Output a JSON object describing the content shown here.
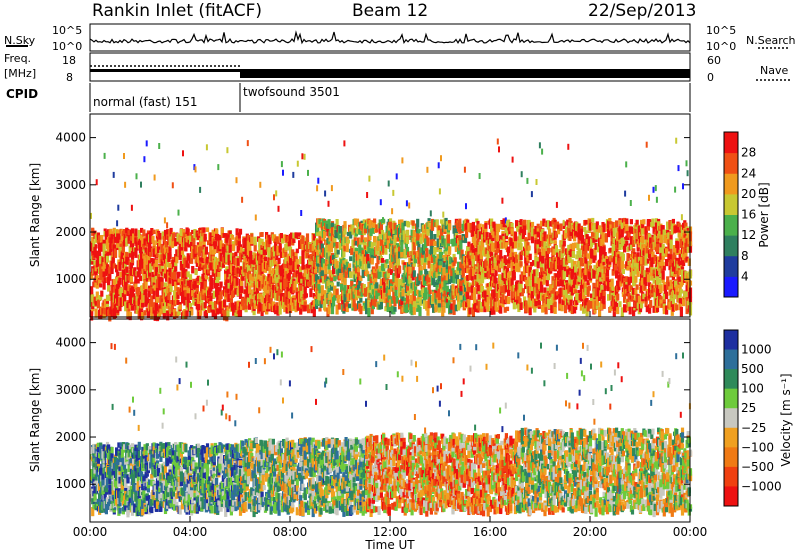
{
  "header": {
    "radar": "Rankin Inlet (fitACF)",
    "beam": "Beam 12",
    "date": "22/Sep/2013"
  },
  "nsky_panel": {
    "left_label": "N.Sky",
    "left_ticks": [
      "10^5",
      "10^0"
    ],
    "right_ticks": [
      "10^5",
      "10^0"
    ],
    "right_label": "N.Search"
  },
  "freq_panel": {
    "left_label_line1": "Freq.",
    "left_label_line2": "[MHz]",
    "left_ticks": [
      "18",
      "8"
    ],
    "right_ticks": [
      "60",
      "0"
    ],
    "right_label": "Nave"
  },
  "cpid": {
    "label": "CPID",
    "modes": [
      {
        "name": "normal (fast) 151",
        "start_hour": 0,
        "end_hour": 6
      },
      {
        "name": "twofsound 3501",
        "start_hour": 6,
        "end_hour": 24
      }
    ]
  },
  "power_panel": {
    "ylabel": "Slant Range [km]",
    "yticks": [
      "1000",
      "2000",
      "3000",
      "4000"
    ],
    "colorbar_label": "Power [dB]",
    "colorbar_ticks": [
      "4",
      "8",
      "12",
      "16",
      "20",
      "24",
      "28"
    ],
    "colors": [
      "#1a1aff",
      "#1f3c9e",
      "#2f7f5f",
      "#4bb04b",
      "#c8c832",
      "#f09a1e",
      "#f05014",
      "#ee1111"
    ]
  },
  "velocity_panel": {
    "ylabel": "Slant Range [km]",
    "yticks": [
      "1000",
      "2000",
      "3000",
      "4000"
    ],
    "colorbar_label": "Velocity [m s⁻¹]",
    "colorbar_ticks": [
      "1000",
      "500",
      "100",
      "25",
      "−25",
      "−100",
      "−500",
      "−1000"
    ],
    "colors": [
      "#1e2fa0",
      "#2e6f9a",
      "#2f8a5a",
      "#6ecb3c",
      "#c8c8c0",
      "#f0a020",
      "#f07a14",
      "#f04010",
      "#ee1111"
    ]
  },
  "x_axis": {
    "label": "Time UT",
    "ticks": [
      "00:00",
      "04:00",
      "08:00",
      "12:00",
      "16:00",
      "20:00",
      "00:00"
    ]
  },
  "chart_data": {
    "type": "heatmap",
    "title": "Rankin Inlet (fitACF) Beam 12 22/Sep/2013",
    "xlabel": "Time UT",
    "ylabel": "Slant Range [km]",
    "xlim_hours": [
      0,
      24
    ],
    "ylim_km": [
      200,
      4500
    ],
    "power_db_range": [
      3,
      30
    ],
    "velocity_ms_range": [
      -1000,
      1000
    ],
    "scatter_bands": [
      {
        "panel": "power",
        "t_start": 0.0,
        "t_end": 6.0,
        "r_min": 300,
        "r_max": 2100,
        "level": 0.85
      },
      {
        "panel": "power",
        "t_start": 6.0,
        "t_end": 9.0,
        "r_min": 400,
        "r_max": 2000,
        "level": 0.8
      },
      {
        "panel": "power",
        "t_start": 9.0,
        "t_end": 15.0,
        "r_min": 400,
        "r_max": 2300,
        "level": 0.6
      },
      {
        "panel": "power",
        "t_start": 15.0,
        "t_end": 24.0,
        "r_min": 400,
        "r_max": 2300,
        "level": 0.8
      },
      {
        "panel": "velocity",
        "t_start": 0.0,
        "t_end": 6.0,
        "r_min": 500,
        "r_max": 1900,
        "level": 0.3
      },
      {
        "panel": "velocity",
        "t_start": 6.0,
        "t_end": 11.0,
        "r_min": 500,
        "r_max": 2000,
        "level": 0.4
      },
      {
        "panel": "velocity",
        "t_start": 11.0,
        "t_end": 17.0,
        "r_min": 500,
        "r_max": 2100,
        "level": 0.65
      },
      {
        "panel": "velocity",
        "t_start": 17.0,
        "t_end": 24.0,
        "r_min": 500,
        "r_max": 2200,
        "level": 0.5
      }
    ]
  }
}
